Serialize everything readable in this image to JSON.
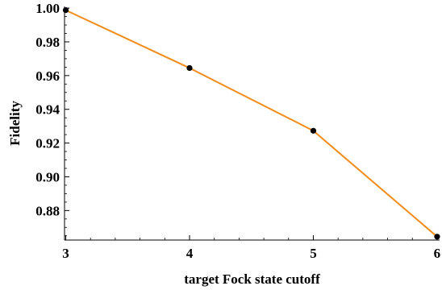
{
  "chart_data": {
    "type": "line",
    "title": "",
    "xlabel": "target Fock state cutoff",
    "ylabel": "Fidelity",
    "x": [
      3,
      4,
      5,
      6
    ],
    "series": [
      {
        "values": [
          0.9988,
          0.9645,
          0.9273,
          0.8645
        ]
      }
    ],
    "xlim": [
      2.99,
      6.02
    ],
    "ylim": [
      0.8625,
      1.001
    ],
    "xticks": [
      3,
      4,
      5,
      6
    ],
    "xtick_labels": [
      "3",
      "4",
      "5",
      "6"
    ],
    "yticks": [
      0.88,
      0.9,
      0.92,
      0.94,
      0.96,
      0.98,
      1.0
    ],
    "ytick_labels": [
      "0.88",
      "0.90",
      "0.92",
      "0.94",
      "0.96",
      "0.98",
      "1.00"
    ],
    "grid": false,
    "line_color": "#f28c1a",
    "marker_color": "#000000"
  }
}
